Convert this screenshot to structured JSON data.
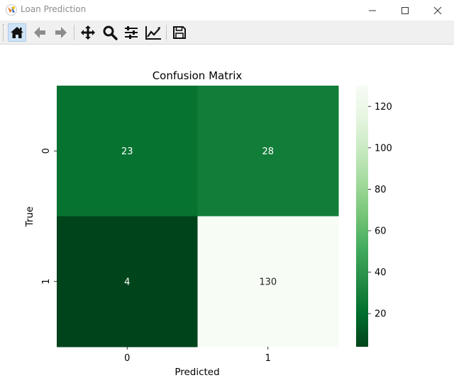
{
  "window": {
    "title": "Loan Prediction"
  },
  "toolbar": {
    "buttons": [
      {
        "name": "home-icon",
        "active": true
      },
      {
        "name": "back-arrow-icon"
      },
      {
        "name": "forward-arrow-icon"
      },
      {
        "name": "pan-icon"
      },
      {
        "name": "zoom-icon"
      },
      {
        "name": "configure-subplots-icon"
      },
      {
        "name": "edit-axis-icon"
      },
      {
        "name": "save-icon"
      }
    ]
  },
  "chart_data": {
    "type": "heatmap",
    "title": "Confusion Matrix",
    "xlabel": "Predicted",
    "ylabel": "True",
    "x_categories": [
      "0",
      "1"
    ],
    "y_categories": [
      "0",
      "1"
    ],
    "values": [
      [
        23,
        28
      ],
      [
        4,
        130
      ]
    ],
    "colormap": "Greens_r",
    "colorbar": {
      "range": [
        4,
        130
      ],
      "ticks": [
        20,
        40,
        60,
        80,
        100,
        120
      ]
    }
  }
}
